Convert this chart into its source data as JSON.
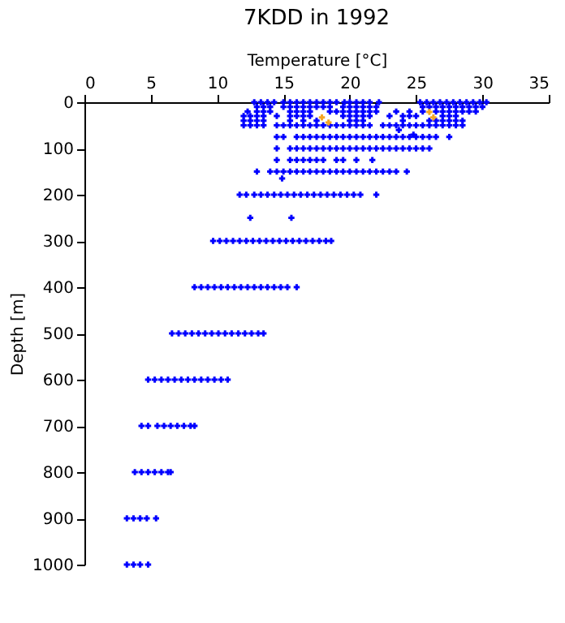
{
  "chart_data": {
    "type": "scatter",
    "title": "7KDD in 1992",
    "xlabel": "Temperature [°C]",
    "ylabel": "Depth [m]",
    "xlim": [
      0,
      35
    ],
    "xticks": [
      0,
      5,
      10,
      15,
      20,
      25,
      30,
      35
    ],
    "ylim": [
      1000,
      0
    ],
    "yticks": [
      0,
      100,
      200,
      300,
      400,
      500,
      600,
      700,
      800,
      900,
      1000
    ],
    "grid": false,
    "legend": false,
    "marker": "cross",
    "series": [
      {
        "color": "#0000ff",
        "x": [
          12.8,
          13.3,
          13.8,
          14.3,
          15,
          15.5,
          16,
          16.5,
          17,
          17.5,
          18,
          18.5,
          19,
          19.6,
          20,
          20.5,
          21,
          21.5,
          22.2,
          25.3,
          25.8,
          26.3,
          26.8,
          27.3,
          27.8,
          28.3,
          28.8,
          29.3,
          29.8,
          30.3
        ],
        "values": [
          0,
          0,
          0,
          0,
          0,
          0,
          0,
          0,
          0,
          0,
          0,
          0,
          0,
          0,
          0,
          0,
          0,
          0,
          0,
          0,
          0,
          0,
          0,
          0,
          0,
          0,
          0,
          0,
          0,
          0
        ]
      },
      {
        "color": "#0000ff",
        "x": [
          13,
          13.5,
          14,
          15,
          15.5,
          16,
          16.5,
          17,
          17.5,
          18,
          18.5,
          19.5,
          20,
          20.5,
          21,
          21.5,
          22,
          25.5,
          26,
          26.5,
          27,
          27.5,
          28,
          28.5,
          29,
          29.5,
          30
        ],
        "values": [
          10,
          10,
          10,
          10,
          10,
          10,
          10,
          10,
          10,
          10,
          10,
          10,
          10,
          10,
          10,
          10,
          10,
          10,
          10,
          10,
          10,
          10,
          10,
          10,
          10,
          10,
          10
        ]
      },
      {
        "color": "#0000ff",
        "x": [
          12.3,
          13,
          13.5,
          14,
          15.5,
          16,
          16.5,
          17,
          18.5,
          19,
          19.5,
          20,
          20.5,
          21,
          21.5,
          22,
          23.5,
          24.5,
          25.5,
          26.5,
          27,
          27.5,
          28,
          28.5,
          29,
          29.5
        ],
        "values": [
          20,
          20,
          20,
          20,
          20,
          20,
          20,
          20,
          20,
          20,
          20,
          20,
          20,
          20,
          20,
          20,
          20,
          20,
          20,
          20,
          20,
          20,
          20,
          20,
          20,
          20
        ]
      },
      {
        "color": "#0000ff",
        "x": [
          12,
          12.5,
          13,
          13.5,
          14.5,
          15.5,
          16,
          16.5,
          17,
          19.5,
          20,
          20.5,
          21,
          21.5,
          23,
          24,
          24.5,
          25,
          27,
          27.5,
          28
        ],
        "values": [
          30,
          30,
          30,
          30,
          30,
          30,
          30,
          30,
          30,
          30,
          30,
          30,
          30,
          30,
          30,
          30,
          30,
          30,
          30,
          30,
          30
        ]
      },
      {
        "color": "#0000ff",
        "x": [
          12,
          12.5,
          13,
          13.5,
          15.5,
          16.5,
          17.5,
          20,
          20.5,
          21,
          24,
          26,
          26.5,
          27,
          27.5,
          28,
          28.5
        ],
        "values": [
          40,
          40,
          40,
          40,
          40,
          40,
          40,
          40,
          40,
          40,
          40,
          40,
          40,
          40,
          40,
          40,
          40
        ]
      },
      {
        "color": "#0000ff",
        "x": [
          12,
          12.5,
          13,
          13.5,
          14.5,
          15,
          15.5,
          16,
          16.5,
          17,
          17.5,
          18,
          18.5,
          19,
          19.5,
          20,
          20.5,
          21,
          21.5,
          22.5,
          23,
          23.5,
          24,
          24.5,
          25,
          25.5,
          26,
          26.5,
          27,
          27.5,
          28,
          28.5
        ],
        "values": [
          50,
          50,
          50,
          50,
          50,
          50,
          50,
          50,
          50,
          50,
          50,
          50,
          50,
          50,
          50,
          50,
          50,
          50,
          50,
          50,
          50,
          50,
          50,
          50,
          50,
          50,
          50,
          50,
          50,
          50,
          50,
          50
        ]
      },
      {
        "color": "#0000ff",
        "x": [
          23.7,
          24.8
        ],
        "values": [
          60,
          70
        ]
      },
      {
        "color": "#0000ff",
        "x": [
          14.5,
          15,
          16,
          16.5,
          17,
          17.5,
          18,
          18.5,
          19,
          19.5,
          20,
          20.5,
          21,
          21.5,
          22,
          22.5,
          23,
          23.5,
          24,
          24.5,
          25,
          25.5,
          26,
          26.5,
          27.5
        ],
        "values": [
          75,
          75,
          75,
          75,
          75,
          75,
          75,
          75,
          75,
          75,
          75,
          75,
          75,
          75,
          75,
          75,
          75,
          75,
          75,
          75,
          75,
          75,
          75,
          75,
          75
        ]
      },
      {
        "color": "#0000ff",
        "x": [
          14.5,
          15.5,
          16,
          16.5,
          17,
          17.5,
          18,
          18.5,
          19,
          19.5,
          20,
          20.5,
          21,
          21.5,
          22,
          22.5,
          23,
          23.5,
          24,
          24.5,
          25,
          25.5,
          26
        ],
        "values": [
          100,
          100,
          100,
          100,
          100,
          100,
          100,
          100,
          100,
          100,
          100,
          100,
          100,
          100,
          100,
          100,
          100,
          100,
          100,
          100,
          100,
          100,
          100
        ]
      },
      {
        "color": "#0000ff",
        "x": [
          14.5,
          15.5,
          16,
          16.5,
          17,
          17.5,
          18,
          19,
          19.5,
          20.5,
          21.7
        ],
        "values": [
          125,
          125,
          125,
          125,
          125,
          125,
          125,
          125,
          125,
          125,
          125
        ]
      },
      {
        "color": "#0000ff",
        "x": [
          13,
          14,
          14.5,
          15,
          15.5,
          16,
          16.5,
          17,
          17.5,
          18,
          18.5,
          19,
          19.5,
          20,
          20.5,
          21,
          21.5,
          22,
          22.5,
          23,
          23.5,
          24.3,
          14.9
        ],
        "values": [
          150,
          150,
          150,
          150,
          150,
          150,
          150,
          150,
          150,
          150,
          150,
          150,
          150,
          150,
          150,
          150,
          150,
          150,
          150,
          150,
          150,
          150,
          165
        ]
      },
      {
        "color": "#0000ff",
        "x": [
          11.7,
          12.2,
          12.8,
          13.3,
          13.8,
          14.3,
          14.8,
          15.3,
          15.8,
          16.3,
          16.8,
          17.3,
          17.8,
          18.3,
          18.8,
          19.3,
          19.8,
          20.3,
          20.8,
          22,
          12.5,
          15.6
        ],
        "values": [
          200,
          200,
          200,
          200,
          200,
          200,
          200,
          200,
          200,
          200,
          200,
          200,
          200,
          200,
          200,
          200,
          200,
          200,
          200,
          200,
          250,
          250
        ]
      },
      {
        "color": "#0000ff",
        "x": [
          9.7,
          10.2,
          10.7,
          11.2,
          11.7,
          12.2,
          12.7,
          13.2,
          13.7,
          14.2,
          14.7,
          15.2,
          15.7,
          16.2,
          16.7,
          17.2,
          17.7,
          18.2,
          18.6
        ],
        "values": [
          300,
          300,
          300,
          300,
          300,
          300,
          300,
          300,
          300,
          300,
          300,
          300,
          300,
          300,
          300,
          300,
          300,
          300,
          300
        ]
      },
      {
        "color": "#0000ff",
        "x": [
          8.3,
          8.8,
          9.3,
          9.8,
          10.3,
          10.8,
          11.3,
          11.8,
          12.3,
          12.8,
          13.3,
          13.8,
          14.3,
          14.8,
          15.3,
          16
        ],
        "values": [
          400,
          400,
          400,
          400,
          400,
          400,
          400,
          400,
          400,
          400,
          400,
          400,
          400,
          400,
          400,
          400
        ]
      },
      {
        "color": "#0000ff",
        "x": [
          6.6,
          7.1,
          7.6,
          8.1,
          8.6,
          9.1,
          9.6,
          10.1,
          10.6,
          11.1,
          11.6,
          12.1,
          12.6,
          13.1,
          13.5
        ],
        "values": [
          500,
          500,
          500,
          500,
          500,
          500,
          500,
          500,
          500,
          500,
          500,
          500,
          500,
          500,
          500
        ]
      },
      {
        "color": "#0000ff",
        "x": [
          4.8,
          5.3,
          5.8,
          6.3,
          6.8,
          7.3,
          7.8,
          8.3,
          8.8,
          9.3,
          9.8,
          10.3,
          10.8
        ],
        "values": [
          600,
          600,
          600,
          600,
          600,
          600,
          600,
          600,
          600,
          600,
          600,
          600,
          600
        ]
      },
      {
        "color": "#0000ff",
        "x": [
          4.3,
          4.8,
          5.5,
          6,
          6.5,
          7,
          7.5,
          8,
          8.3
        ],
        "values": [
          700,
          700,
          700,
          700,
          700,
          700,
          700,
          700,
          700
        ]
      },
      {
        "color": "#0000ff",
        "x": [
          3.8,
          4.3,
          4.8,
          5.3,
          5.8,
          6.3,
          6.5
        ],
        "values": [
          800,
          800,
          800,
          800,
          800,
          800,
          800
        ]
      },
      {
        "color": "#0000ff",
        "x": [
          3.2,
          3.7,
          4.2,
          4.7,
          5.4
        ],
        "values": [
          900,
          900,
          900,
          900,
          900
        ]
      },
      {
        "color": "#0000ff",
        "x": [
          3.2,
          3.7,
          4.2,
          4.8
        ],
        "values": [
          1000,
          1000,
          1000,
          1000
        ]
      },
      {
        "color": "#f5a623",
        "x": [
          17.9,
          18.4,
          26,
          26.3
        ],
        "values": [
          33,
          44,
          21,
          33
        ]
      }
    ]
  }
}
